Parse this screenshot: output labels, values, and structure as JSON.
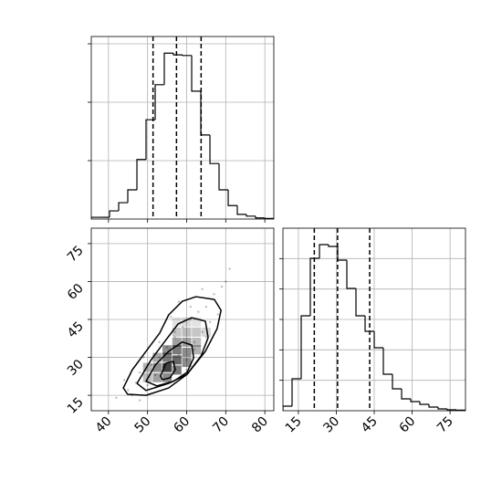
{
  "chart_data": [
    {
      "type": "histogram",
      "color": "#000000",
      "grid": true,
      "show_xtick_labels": false,
      "show_ytick_labels": false,
      "bins": [
        35.6,
        37.94,
        40.27,
        42.61,
        44.94,
        47.28,
        49.61,
        51.95,
        54.28,
        56.62,
        58.95,
        61.29,
        63.62,
        65.96,
        68.29,
        70.63,
        72.96,
        75.3,
        77.63,
        79.97,
        82.3
      ],
      "values": [
        0.003,
        0.003,
        0.014,
        0.028,
        0.05,
        0.102,
        0.17,
        0.23,
        0.284,
        0.281,
        0.28,
        0.219,
        0.144,
        0.095,
        0.05,
        0.023,
        0.008,
        0.005,
        0.002,
        0.001
      ],
      "quantiles": [
        51.4,
        57.4,
        63.7
      ],
      "xlim": [
        35.6,
        82.3
      ],
      "ylim": [
        0,
        0.3125
      ],
      "xticks": [
        40,
        50,
        60,
        70,
        80
      ],
      "yticks": [
        0.1,
        0.2,
        0.3
      ]
    },
    {
      "type": "hist2d",
      "color": "#000000",
      "grid": true,
      "show_xtick_labels": true,
      "show_ytick_labels": true,
      "xlim": [
        35.6,
        82.3
      ],
      "ylim": [
        8.9,
        81.1
      ],
      "xticks": [
        40,
        50,
        60,
        70,
        80
      ],
      "yticks": [
        15,
        30,
        45,
        60,
        75
      ],
      "cell_size": [
        2.335,
        3.61
      ],
      "points": {
        "x": [
          42,
          45,
          47,
          48,
          50,
          51,
          52,
          53,
          54,
          55,
          56,
          57,
          58,
          59,
          60,
          61,
          62,
          63,
          64,
          65,
          66,
          67,
          68,
          69,
          70,
          44,
          46,
          49,
          53,
          57,
          61,
          65,
          71,
          48,
          52,
          56,
          60,
          64,
          58,
          62
        ],
        "y": [
          14,
          17,
          20,
          24,
          19,
          27,
          23,
          30,
          26,
          34,
          22,
          38,
          31,
          42,
          29,
          45,
          36,
          48,
          40,
          50,
          44,
          55,
          47,
          58,
          60,
          21,
          15,
          30,
          36,
          40,
          50,
          38,
          65,
          13,
          18,
          46,
          25,
          57,
          52,
          33
        ]
      },
      "density": {
        "x": [
          55,
          57.5,
          55,
          60,
          57.5,
          60,
          57.5,
          55,
          52.5,
          52.5,
          55,
          57.5,
          60,
          62.5,
          62.5,
          60,
          57.5,
          60,
          50,
          50,
          52.5,
          62.5,
          65,
          62.5,
          57.5
        ],
        "y": [
          26,
          29,
          30,
          32,
          33,
          36,
          36,
          33,
          26,
          22,
          22,
          25,
          28,
          33,
          40,
          40,
          40,
          44,
          22,
          26,
          30,
          36,
          40,
          44,
          44
        ],
        "values": [
          1,
          0.8,
          0.7,
          0.6,
          0.7,
          0.5,
          0.5,
          0.6,
          0.6,
          0.5,
          0.6,
          0.7,
          0.6,
          0.4,
          0.3,
          0.35,
          0.3,
          0.2,
          0.35,
          0.4,
          0.45,
          0.35,
          0.2,
          0.15,
          0.15
        ]
      },
      "contours": [
        {
          "x": [
            43.8,
            46.1,
            49.6,
            53.1,
            55.4,
            58.9,
            62.4,
            67.1,
            68.8,
            67.8,
            64.8,
            60.1,
            55.4,
            49.6,
            44.9
          ],
          "y": [
            17.9,
            25.1,
            32.4,
            39.6,
            46.8,
            52.2,
            54.0,
            52.9,
            48.6,
            41.4,
            32.4,
            23.3,
            17.9,
            15.0,
            15.4
          ]
        },
        {
          "x": [
            47.3,
            50.8,
            54.3,
            57.8,
            61.3,
            64.8,
            65.5,
            63.7,
            60.1,
            55.4,
            49.6
          ],
          "y": [
            19.7,
            28.8,
            36.1,
            43.2,
            45.7,
            44.3,
            37.8,
            30.6,
            23.3,
            19.7,
            16.9
          ]
        },
        {
          "x": [
            49.6,
            52.0,
            55.4,
            58.9,
            61.3,
            61.8,
            60.1,
            56.6,
            52.4
          ],
          "y": [
            20.5,
            27.0,
            32.4,
            36.1,
            34.9,
            29.8,
            24.1,
            20.5,
            18.7
          ]
        },
        {
          "x": [
            53.3,
            54.7,
            56.6,
            57.1,
            55.7,
            53.8
          ],
          "y": [
            22.6,
            27.7,
            28.4,
            25.1,
            21.9,
            21.2
          ]
        }
      ]
    },
    {
      "type": "histogram",
      "color": "#000000",
      "grid": true,
      "show_xtick_labels": true,
      "show_ytick_labels": false,
      "bins": [
        8.9,
        12.51,
        16.12,
        19.73,
        23.34,
        26.95,
        30.56,
        34.17,
        37.78,
        41.39,
        45.0,
        48.61,
        52.22,
        55.83,
        59.44,
        63.05,
        66.66,
        70.27,
        73.88,
        77.49,
        81.1
      ],
      "values": [
        0.0015,
        0.0105,
        0.0312,
        0.0501,
        0.0546,
        0.054,
        0.0495,
        0.0402,
        0.0312,
        0.0261,
        0.0207,
        0.012,
        0.0072,
        0.0039,
        0.003,
        0.0021,
        0.0012,
        0.0006,
        0.0003,
        0.0002
      ],
      "quantiles": [
        21.3,
        30.5,
        43.2
      ],
      "xlim": [
        8.9,
        81.1
      ],
      "ylim": [
        0,
        0.06
      ],
      "xticks": [
        15,
        30,
        45,
        60,
        75
      ],
      "yticks": [
        0.01,
        0.02,
        0.03,
        0.04,
        0.05
      ]
    }
  ]
}
